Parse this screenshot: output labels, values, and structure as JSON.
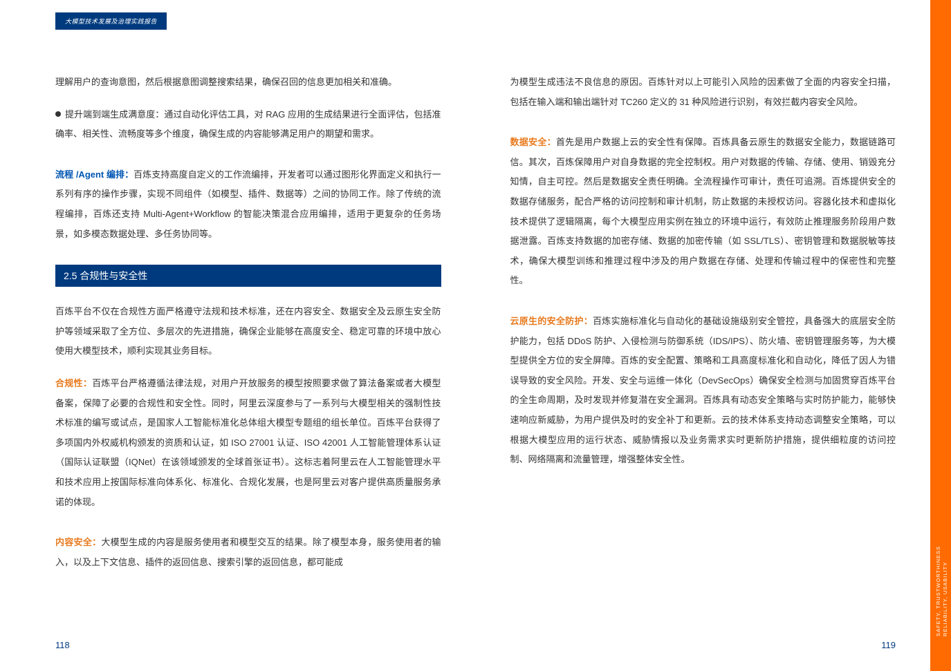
{
  "header": {
    "tab_label": "大模型技术发展及治理实践报告"
  },
  "left_page": {
    "para1": "理解用户的查询意图，然后根据意图调整搜索结果，确保召回的信息更加相关和准确。",
    "para2_bullet_text": "提升端到端生成满意度：通过自动化评估工具，对 RAG 应用的生成结果进行全面评估，包括准确率、相关性、流畅度等多个维度，确保生成的内容能够满足用户的期望和需求。",
    "para3_label": "流程 /Agent 编排：",
    "para3_body": "百炼支持高度自定义的工作流编排，开发者可以通过图形化界面定义和执行一系列有序的操作步骤，实现不同组件（如模型、插件、数据等）之间的协同工作。除了传统的流程编排，百炼还支持 Multi-Agent+Workflow 的智能决策混合应用编排，适用于更复杂的任务场景，如多模态数据处理、多任务协同等。",
    "section_heading": "2.5 合规性与安全性",
    "para4": "百炼平台不仅在合规性方面严格遵守法规和技术标准，还在内容安全、数据安全及云原生安全防护等领域采取了全方位、多层次的先进措施，确保企业能够在高度安全、稳定可靠的环境中放心使用大模型技术，顺利实现其业务目标。",
    "para5_label": "合规性：",
    "para5_body": "百炼平台严格遵循法律法规，对用户开放服务的模型按照要求做了算法备案或者大模型备案，保障了必要的合规性和安全性。同时，阿里云深度参与了一系列与大模型相关的强制性技术标准的编写或试点，是国家人工智能标准化总体组大模型专题组的组长单位。百炼平台获得了多项国内外权威机构颁发的资质和认证，如 ISO 27001 认证、ISO 42001 人工智能管理体系认证（国际认证联盟（IQNet）在该领域颁发的全球首张证书）。这标志着阿里云在人工智能管理水平和技术应用上按国际标准向体系化、标准化、合规化发展，也是阿里云对客户提供高质量服务承诺的体现。",
    "para6_label": "内容安全：",
    "para6_body": "大模型生成的内容是服务使用者和模型交互的结果。除了模型本身，服务使用者的输入，以及上下文信息、插件的返回信息、搜索引擎的返回信息，都可能成",
    "page_number": "118"
  },
  "right_page": {
    "para1": "为模型生成违法不良信息的原因。百炼针对以上可能引入风险的因素做了全面的内容安全扫描，包括在输入端和输出端针对 TC260 定义的 31 种风险进行识别，有效拦截内容安全风险。",
    "para2_label": "数据安全：",
    "para2_body": "首先是用户数据上云的安全性有保障。百炼具备云原生的数据安全能力，数据链路可信。其次，百炼保障用户对自身数据的完全控制权。用户对数据的传输、存储、使用、销毁充分知情，自主可控。然后是数据安全责任明确。全流程操作可审计，责任可追溯。百炼提供安全的数据存储服务，配合严格的访问控制和审计机制，防止数据的未授权访问。容器化技术和虚拟化技术提供了逻辑隔离，每个大模型应用实例在独立的环境中运行，有效防止推理服务阶段用户数据泄露。百炼支持数据的加密存储、数据的加密传输（如 SSL/TLS）、密钥管理和数据脱敏等技术，确保大模型训练和推理过程中涉及的用户数据在存储、处理和传输过程中的保密性和完整性。",
    "para3_label": "云原生的安全防护：",
    "para3_body": "百炼实施标准化与自动化的基础设施级别安全管控，具备强大的底层安全防护能力，包括 DDoS 防护、入侵检测与防御系统（IDS/IPS）、防火墙、密钥管理服务等，为大模型提供全方位的安全屏障。百炼的安全配置、策略和工具高度标准化和自动化，降低了因人为错误导致的安全风险。开发、安全与运维一体化（DevSecOps）确保安全检测与加固贯穿百炼平台的全生命周期，及时发现并修复潜在安全漏洞。百炼具有动态安全策略与实时防护能力，能够快速响应新威胁，为用户提供及时的安全补丁和更新。云的技术体系支持动态调整安全策略，可以根据大模型应用的运行状态、威胁情报以及业务需求实时更新防护措施，提供细粒度的访问控制、网络隔离和流量管理，增强整体安全性。",
    "page_number": "119",
    "ribbon_line1": "SAFETY, TRUSTWORTHINESS",
    "ribbon_line2": "RELIABILITY, USABILITY"
  },
  "colors": {
    "heading_bg": "#003a7e",
    "heading_text": "#ffffff",
    "body_text": "#333333",
    "label_blue": "#0056b3",
    "label_orange": "#e87a1e",
    "ribbon_bg": "#ff6b00",
    "page_number": "#003a7e"
  }
}
